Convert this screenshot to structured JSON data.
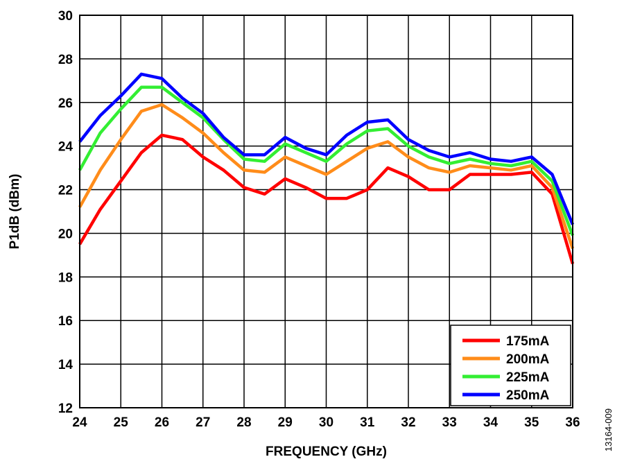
{
  "chart_data": {
    "type": "line",
    "xlabel": "FREQUENCY (GHz)",
    "ylabel": "P1dB (dBm)",
    "xlim": [
      24,
      36
    ],
    "ylim": [
      12,
      30
    ],
    "xticks": [
      24,
      25,
      26,
      27,
      28,
      29,
      30,
      31,
      32,
      33,
      34,
      35,
      36
    ],
    "yticks": [
      12,
      14,
      16,
      18,
      20,
      22,
      24,
      26,
      28,
      30
    ],
    "grid": true,
    "legend_position": "bottom-right",
    "figure_id": "13164-009",
    "series": [
      {
        "name": "175mA",
        "color": "#ff0000",
        "x": [
          24,
          24.5,
          25,
          25.5,
          26,
          26.5,
          27,
          27.5,
          28,
          28.5,
          29,
          29.5,
          30,
          30.5,
          31,
          31.5,
          32,
          32.5,
          33,
          33.5,
          34,
          34.5,
          35,
          35.5,
          36
        ],
        "y": [
          19.5,
          21.1,
          22.4,
          23.7,
          24.5,
          24.3,
          23.5,
          22.9,
          22.1,
          21.8,
          22.5,
          22.1,
          21.6,
          21.6,
          22.0,
          23.0,
          22.6,
          22.0,
          22.0,
          22.7,
          22.7,
          22.7,
          22.8,
          21.8,
          18.6
        ]
      },
      {
        "name": "200mA",
        "color": "#ff8c1a",
        "x": [
          24,
          24.5,
          25,
          25.5,
          26,
          26.5,
          27,
          27.5,
          28,
          28.5,
          29,
          29.5,
          30,
          30.5,
          31,
          31.5,
          32,
          32.5,
          33,
          33.5,
          34,
          34.5,
          35,
          35.5,
          36
        ],
        "y": [
          21.2,
          22.9,
          24.3,
          25.6,
          25.9,
          25.3,
          24.6,
          23.7,
          22.9,
          22.8,
          23.5,
          23.1,
          22.7,
          23.3,
          23.9,
          24.2,
          23.5,
          23.0,
          22.8,
          23.1,
          23.0,
          22.9,
          23.1,
          22.1,
          19.3
        ]
      },
      {
        "name": "225mA",
        "color": "#33ee33",
        "x": [
          24,
          24.5,
          25,
          25.5,
          26,
          26.5,
          27,
          27.5,
          28,
          28.5,
          29,
          29.5,
          30,
          30.5,
          31,
          31.5,
          32,
          32.5,
          33,
          33.5,
          34,
          34.5,
          35,
          35.5,
          36
        ],
        "y": [
          22.9,
          24.6,
          25.7,
          26.7,
          26.7,
          26.0,
          25.3,
          24.3,
          23.4,
          23.3,
          24.1,
          23.7,
          23.3,
          24.1,
          24.7,
          24.8,
          24.0,
          23.5,
          23.2,
          23.4,
          23.2,
          23.1,
          23.3,
          22.4,
          19.9
        ]
      },
      {
        "name": "250mA",
        "color": "#0000ff",
        "x": [
          24,
          24.5,
          25,
          25.5,
          26,
          26.5,
          27,
          27.5,
          28,
          28.5,
          29,
          29.5,
          30,
          30.5,
          31,
          31.5,
          32,
          32.5,
          33,
          33.5,
          34,
          34.5,
          35,
          35.5,
          36
        ],
        "y": [
          24.2,
          25.4,
          26.3,
          27.3,
          27.1,
          26.2,
          25.5,
          24.4,
          23.6,
          23.6,
          24.4,
          23.9,
          23.6,
          24.5,
          25.1,
          25.2,
          24.3,
          23.8,
          23.5,
          23.7,
          23.4,
          23.3,
          23.5,
          22.7,
          20.4
        ]
      }
    ]
  }
}
